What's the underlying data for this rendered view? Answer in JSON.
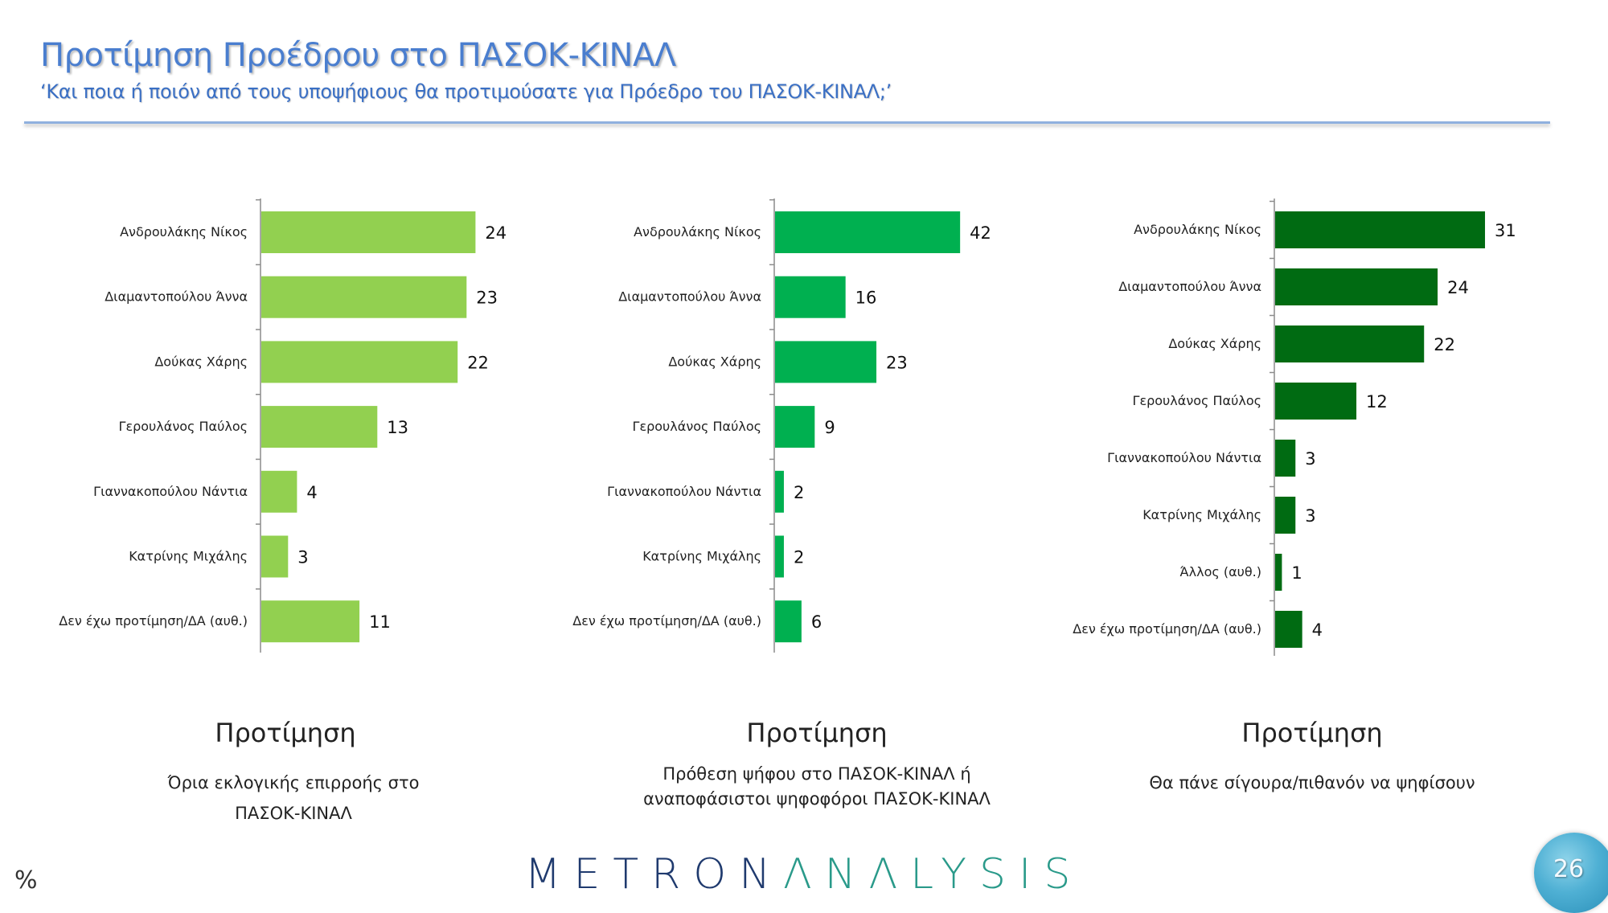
{
  "header": {
    "title": "Προτίμηση Προέδρου στο ΠΑΣΟΚ-ΚΙΝΑΛ",
    "subtitle": "‘Και ποια ή ποιόν από τους υποψήφιους θα προτιμούσατε για Πρόεδρο του ΠΑΣΟΚ-ΚΙΝΑΛ;’"
  },
  "colors": {
    "title": "#4a7ecf",
    "chart1_bar": "#92d050",
    "chart2_bar": "#00b050",
    "chart3_bar": "#006b12"
  },
  "chart_data": [
    {
      "type": "bar",
      "orientation": "horizontal",
      "title": "Προτίμηση",
      "subtitle_lines": [
        "Όρια εκλογικής επιρροής στο",
        "ΠΑΣΟΚ-ΚΙΝΑΛ"
      ],
      "unit": "%",
      "categories": [
        "Ανδρουλάκης Νίκος",
        "Διαμαντοπούλου Άννα",
        "Δούκας Χάρης",
        "Γερουλάνος Παύλος",
        "Γιαννακοπούλου Νάντια",
        "Κατρίνης Μιχάλης",
        "Δεν έχω προτίμηση/ΔΑ (αυθ.)"
      ],
      "values": [
        24,
        23,
        22,
        13,
        4,
        3,
        11
      ],
      "color": "#92d050"
    },
    {
      "type": "bar",
      "orientation": "horizontal",
      "title": "Προτίμηση",
      "subtitle_lines": [
        "Πρόθεση ψήφου στο ΠΑΣΟΚ-ΚΙΝΑΛ ή",
        "αναποφάσιστοι ψηφοφόροι ΠΑΣΟΚ-ΚΙΝΑΛ"
      ],
      "unit": "%",
      "categories": [
        "Ανδρουλάκης Νίκος",
        "Διαμαντοπούλου Άννα",
        "Δούκας Χάρης",
        "Γερουλάνος Παύλος",
        "Γιαννακοπούλου Νάντια",
        "Κατρίνης Μιχάλης",
        "Δεν έχω προτίμηση/ΔΑ (αυθ.)"
      ],
      "values": [
        42,
        16,
        23,
        9,
        2,
        2,
        6
      ],
      "color": "#00b050"
    },
    {
      "type": "bar",
      "orientation": "horizontal",
      "title": "Προτίμηση",
      "subtitle_lines": [
        "Θα πάνε σίγουρα/πιθανόν να ψηφίσουν"
      ],
      "unit": "%",
      "categories": [
        "Ανδρουλάκης Νίκος",
        "Διαμαντοπούλου Άννα",
        "Δούκας Χάρης",
        "Γερουλάνος Παύλος",
        "Γιαννακοπούλου Νάντια",
        "Κατρίνης Μιχάλης",
        "Άλλος (αυθ.)",
        "Δεν έχω προτίμηση/ΔΑ (αυθ.)"
      ],
      "values": [
        31,
        24,
        22,
        12,
        3,
        3,
        1,
        4
      ],
      "color": "#006b12"
    }
  ],
  "footer": {
    "unit_symbol": "%",
    "logo_part1": "METRON",
    "logo_part2": "ΛNΛLYSIS",
    "page_number": "26"
  }
}
